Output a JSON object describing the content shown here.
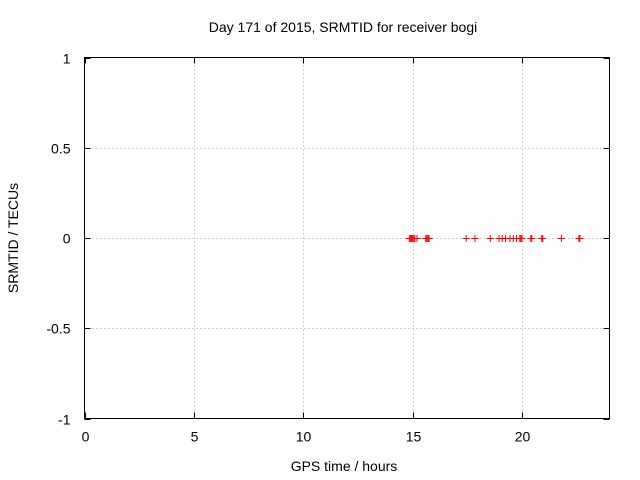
{
  "chart_data": {
    "type": "scatter",
    "title": "Day 171 of 2015, SRMTID for receiver bogi",
    "xlabel": "GPS time / hours",
    "ylabel": "SRMTID / TECUs",
    "xlim": [
      0,
      24
    ],
    "ylim": [
      -1,
      1
    ],
    "xticks": [
      0,
      5,
      10,
      15,
      20
    ],
    "xtick_labels": [
      "0",
      "5",
      "10",
      "15",
      "20"
    ],
    "yticks": [
      1,
      0.5,
      0,
      -0.5,
      -1
    ],
    "ytick_labels": [
      "1",
      "0.5",
      "0",
      "-0.5",
      "-1"
    ],
    "grid": true,
    "marker": "plus",
    "series": [
      {
        "name": "SRMTID",
        "color": "#ff0000",
        "x": [
          14.85,
          14.9,
          14.95,
          15.0,
          15.05,
          15.1,
          15.2,
          15.6,
          15.65,
          15.7,
          15.75,
          17.45,
          17.85,
          18.55,
          18.95,
          19.1,
          19.25,
          19.45,
          19.6,
          19.75,
          19.9,
          19.95,
          20.0,
          20.4,
          20.45,
          20.9,
          20.95,
          21.8,
          22.6,
          22.65
        ],
        "y": [
          0,
          0,
          0,
          0,
          0,
          0,
          0,
          0,
          0,
          0,
          0,
          0,
          0,
          0,
          0,
          0,
          0,
          0,
          0,
          0,
          0,
          0,
          0,
          0,
          0,
          0,
          0,
          0,
          0,
          0
        ]
      }
    ]
  }
}
